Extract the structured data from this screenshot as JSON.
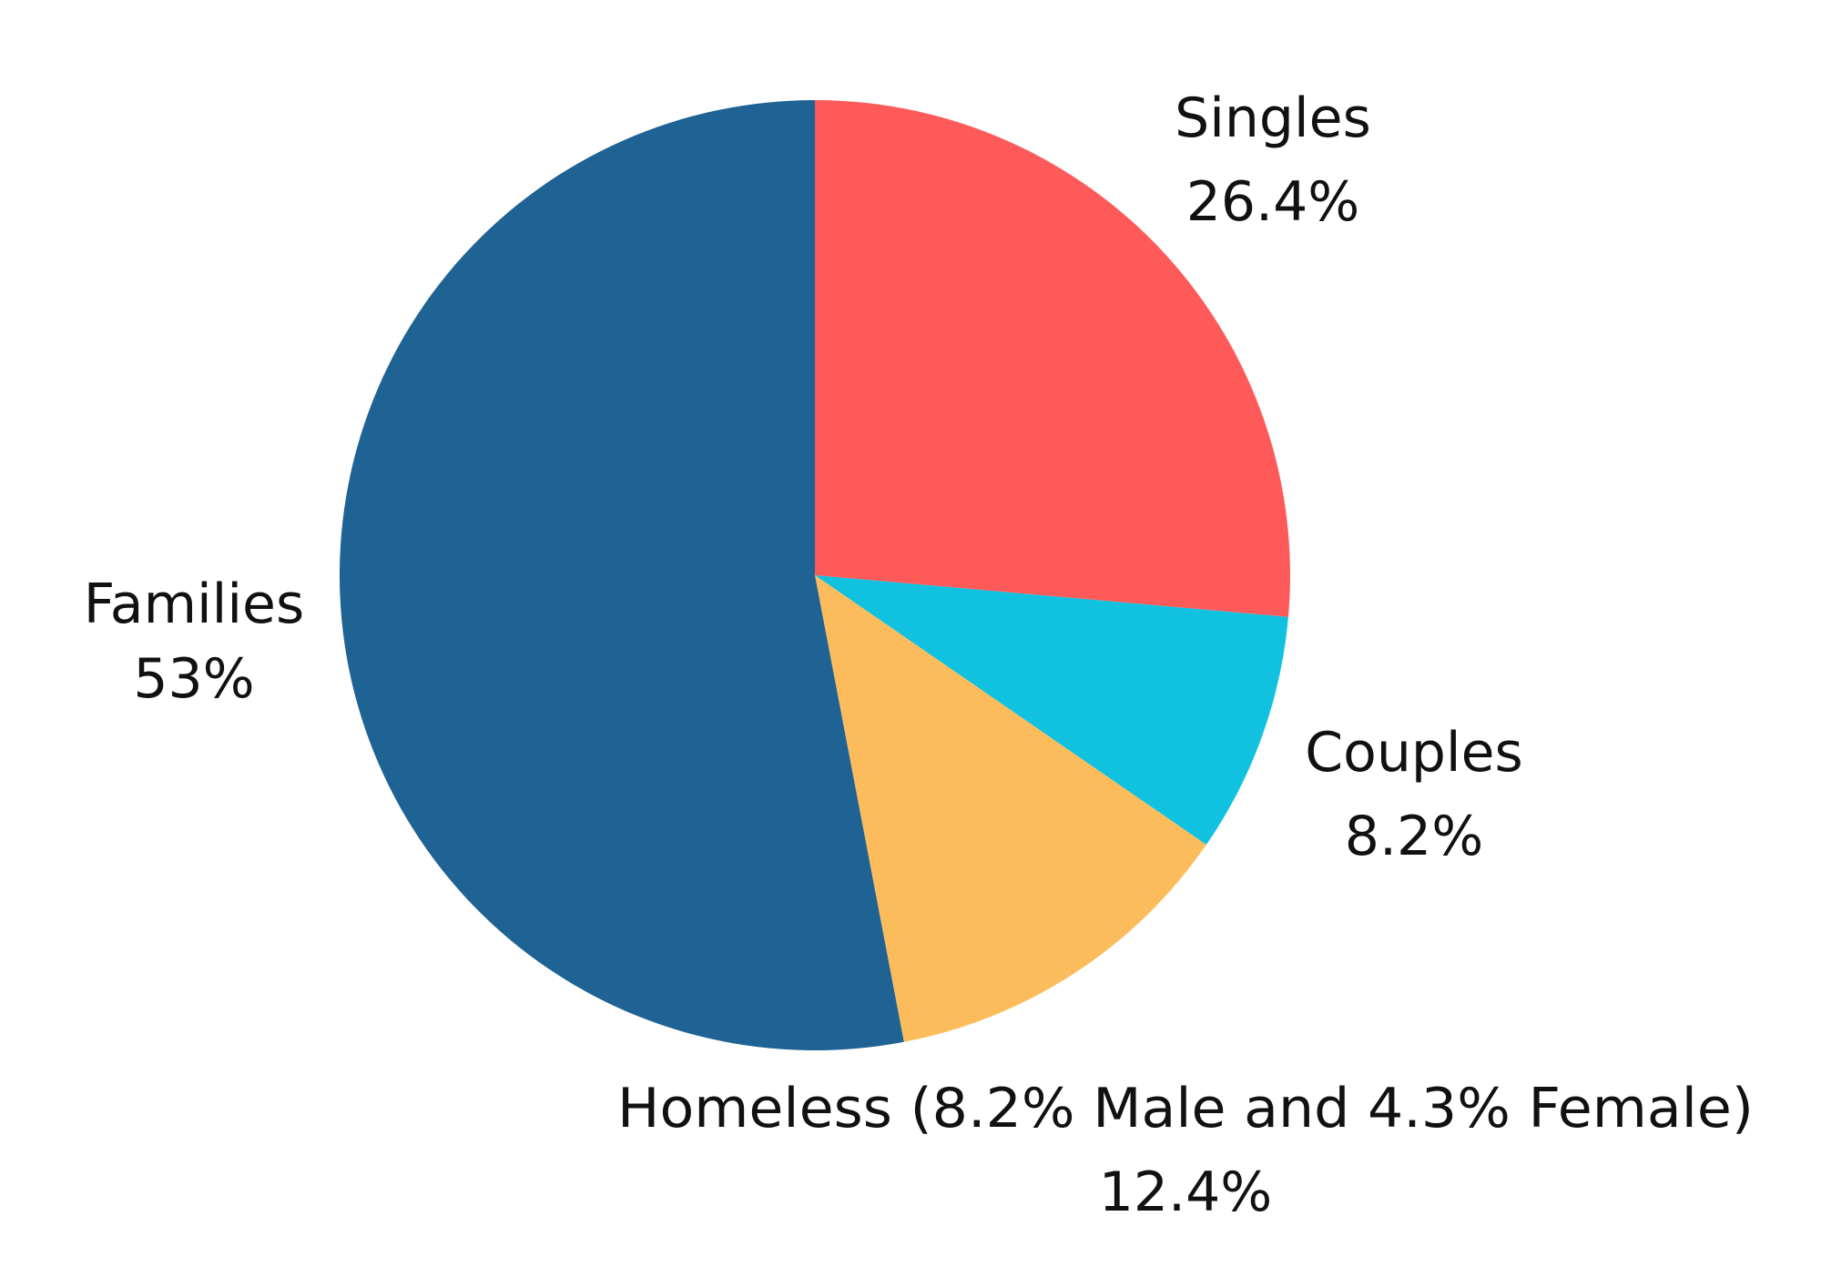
{
  "chart_data": {
    "type": "pie",
    "slices": [
      {
        "label": "Singles",
        "value": 26.4,
        "value_label": "26.4%",
        "color": "#FF5A5A"
      },
      {
        "label": "Couples",
        "value": 8.2,
        "value_label": "8.2%",
        "color": "#10C2E0"
      },
      {
        "label": "Homeless (8.2% Male and 4.3% Female)",
        "value": 12.4,
        "value_label": "12.4%",
        "color": "#FDBC5B"
      },
      {
        "label": "Families",
        "value": 53,
        "value_label": "53%",
        "color": "#1F6294"
      }
    ],
    "start_angle": "12 o'clock",
    "direction": "clockwise",
    "label_placement": "outside"
  }
}
